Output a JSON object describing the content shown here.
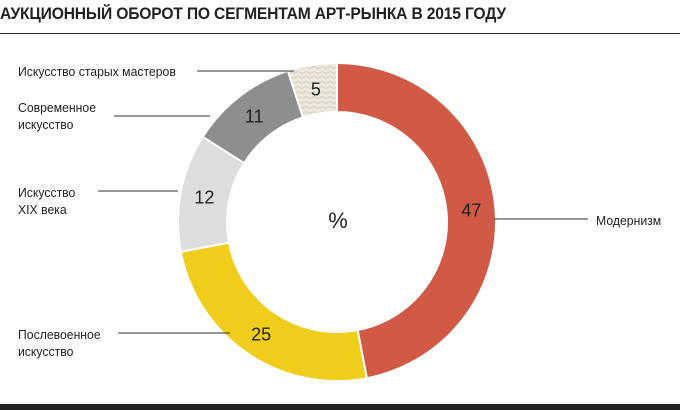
{
  "chart_data": {
    "type": "pie",
    "title": "АУКЦИОННЫЙ ОБОРОТ ПО СЕГМЕНТАМ АРТ-РЫНКА В 2015 ГОДУ",
    "center_label": "%",
    "categories": [
      "Модернизм",
      "Послевоенное искусство",
      "Искусство XIX века",
      "Современное искусство",
      "Искусство старых мастеров"
    ],
    "values": [
      47,
      25,
      12,
      11,
      5
    ],
    "slices": [
      {
        "name": "Модернизм",
        "label_lines": [
          "Модернизм"
        ],
        "value": 47,
        "color": "#d05a45",
        "value_color": "#222222"
      },
      {
        "name": "Послевоенное искусство",
        "label_lines": [
          "Послевоенное",
          "искусство"
        ],
        "value": 25,
        "color": "#f0cd1a",
        "value_color": "#222222"
      },
      {
        "name": "Искусство XIX века",
        "label_lines": [
          "Искусство",
          "XIX века"
        ],
        "value": 12,
        "color": "#dddddd",
        "value_color": "#222222"
      },
      {
        "name": "Современное искусство",
        "label_lines": [
          "Современное",
          "искусство"
        ],
        "value": 11,
        "color": "#8e8e8e",
        "value_color": "#222222"
      },
      {
        "name": "Искусство старых мастеров",
        "label_lines": [
          "Искусство старых мастеров"
        ],
        "value": 5,
        "color": "#ede8de",
        "value_color": "#222222"
      }
    ]
  }
}
